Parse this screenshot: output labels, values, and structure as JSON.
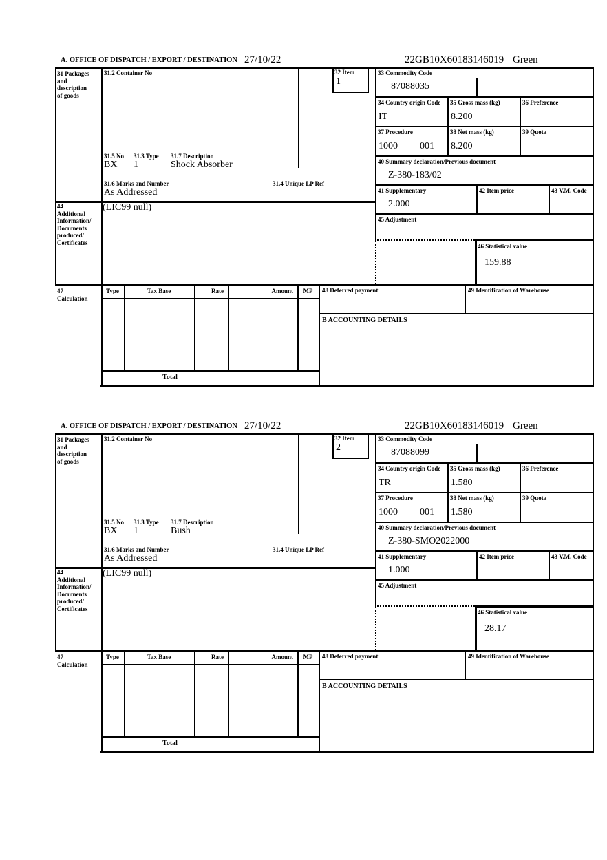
{
  "header": {
    "office": "A.  OFFICE OF DISPATCH / EXPORT / DESTINATION",
    "date": "27/10/22",
    "entry_number": "22GB10X60183146019",
    "route": "Green"
  },
  "labels": {
    "box31": "31 Packages\nand\ndescription\nof goods",
    "box31_2": "31.2 Container No",
    "box31_5": "31.5 No",
    "box31_3": "31.3 Type",
    "box31_7": "31.7 Description",
    "box31_6": "31.6 Marks and Number",
    "box31_4": "31.4 Unique LP Ref",
    "box32": "32 Item",
    "box33": "33 Commodity Code",
    "box34": "34 Country origin Code",
    "box35": "35 Gross mass (kg)",
    "box36": "36 Preference",
    "box37": "37 Procedure",
    "box38": "38 Net mass (kg)",
    "box39": "39 Quota",
    "box40": "40 Summary declaration/Previous document",
    "box41": "41 Supplementary",
    "box42": "42 Item price",
    "box43": "43 V.M. Code",
    "box44": "44\nAdditional\nInformation/\nDocuments\nproduced/\nCertificates",
    "box45": "45 Adjustment",
    "box46": "46 Statistical value",
    "box47": "47\nCalculation",
    "box48": "48 Deferred payment",
    "box49": "49 Identification of Warehouse",
    "accounting": "B ACCOUNTING DETAILS",
    "total": "Total",
    "calc_columns": {
      "type": "Type",
      "tax_base": "Tax Base",
      "rate": "Rate",
      "amount": "Amount",
      "mp": "MP"
    }
  },
  "items": [
    {
      "item_no": "1",
      "container_no": "",
      "package_no": "BX",
      "package_type": "1",
      "description": "Shock Absorber",
      "marks": "As Addressed",
      "unique_lp_ref": "",
      "commodity_code": "87088035",
      "country_origin": "IT",
      "gross_mass": "8.200",
      "preference": "",
      "procedure": "1000",
      "procedure_qualifier": "001",
      "net_mass": "8.200",
      "quota": "",
      "previous_document": "Z-380-183/02",
      "supplementary": "2.000",
      "item_price": "",
      "vm_code": "",
      "adjustment": "",
      "statistical_value": "159.88",
      "additional_information": "(LIC99 null)"
    },
    {
      "item_no": "2",
      "container_no": "",
      "package_no": "BX",
      "package_type": "1",
      "description": "Bush",
      "marks": "As Addressed",
      "unique_lp_ref": "",
      "commodity_code": "87088099",
      "country_origin": "TR",
      "gross_mass": "1.580",
      "preference": "",
      "procedure": "1000",
      "procedure_qualifier": "001",
      "net_mass": "1.580",
      "quota": "",
      "previous_document": "Z-380-SMO2022000",
      "supplementary": "1.000",
      "item_price": "",
      "vm_code": "",
      "adjustment": "",
      "statistical_value": "28.17",
      "additional_information": "(LIC99 null)"
    }
  ]
}
